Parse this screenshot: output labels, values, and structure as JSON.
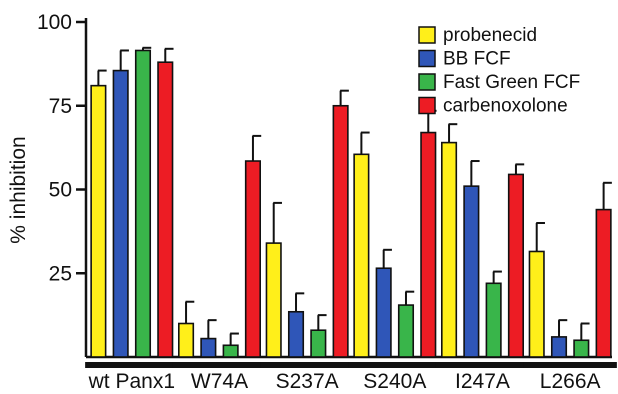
{
  "chart_data": {
    "type": "bar",
    "ylabel": "% inhibition",
    "xlabel": "",
    "ylim": [
      0,
      100
    ],
    "yticks": [
      25,
      50,
      75,
      100
    ],
    "categories": [
      "wt Panx1",
      "W74A",
      "S237A",
      "S240A",
      "I247A",
      "L266A"
    ],
    "series": [
      {
        "name": "probenecid",
        "color": "#ffef1a",
        "values": [
          81,
          10,
          34,
          60.5,
          64,
          31.5
        ],
        "errors": [
          4.5,
          6.5,
          12,
          6.5,
          5.5,
          8.5
        ]
      },
      {
        "name": "BB FCF",
        "color": "#2f56b8",
        "values": [
          85.5,
          5.5,
          13.5,
          26.5,
          51,
          6
        ],
        "errors": [
          6,
          5.5,
          5.5,
          5.5,
          7.5,
          5
        ]
      },
      {
        "name": "Fast Green FCF",
        "color": "#39b54a",
        "values": [
          91.5,
          3.5,
          8,
          15.5,
          22,
          5
        ],
        "errors": [
          0.8,
          3.5,
          4.5,
          4,
          3.5,
          5
        ]
      },
      {
        "name": "carbenoxolone",
        "color": "#ed1c24",
        "values": [
          88,
          58.5,
          75,
          67,
          54.5,
          44
        ],
        "errors": [
          4,
          7.5,
          4.5,
          6.5,
          3,
          8
        ]
      }
    ],
    "legend_position": "top-right",
    "grid": false
  }
}
